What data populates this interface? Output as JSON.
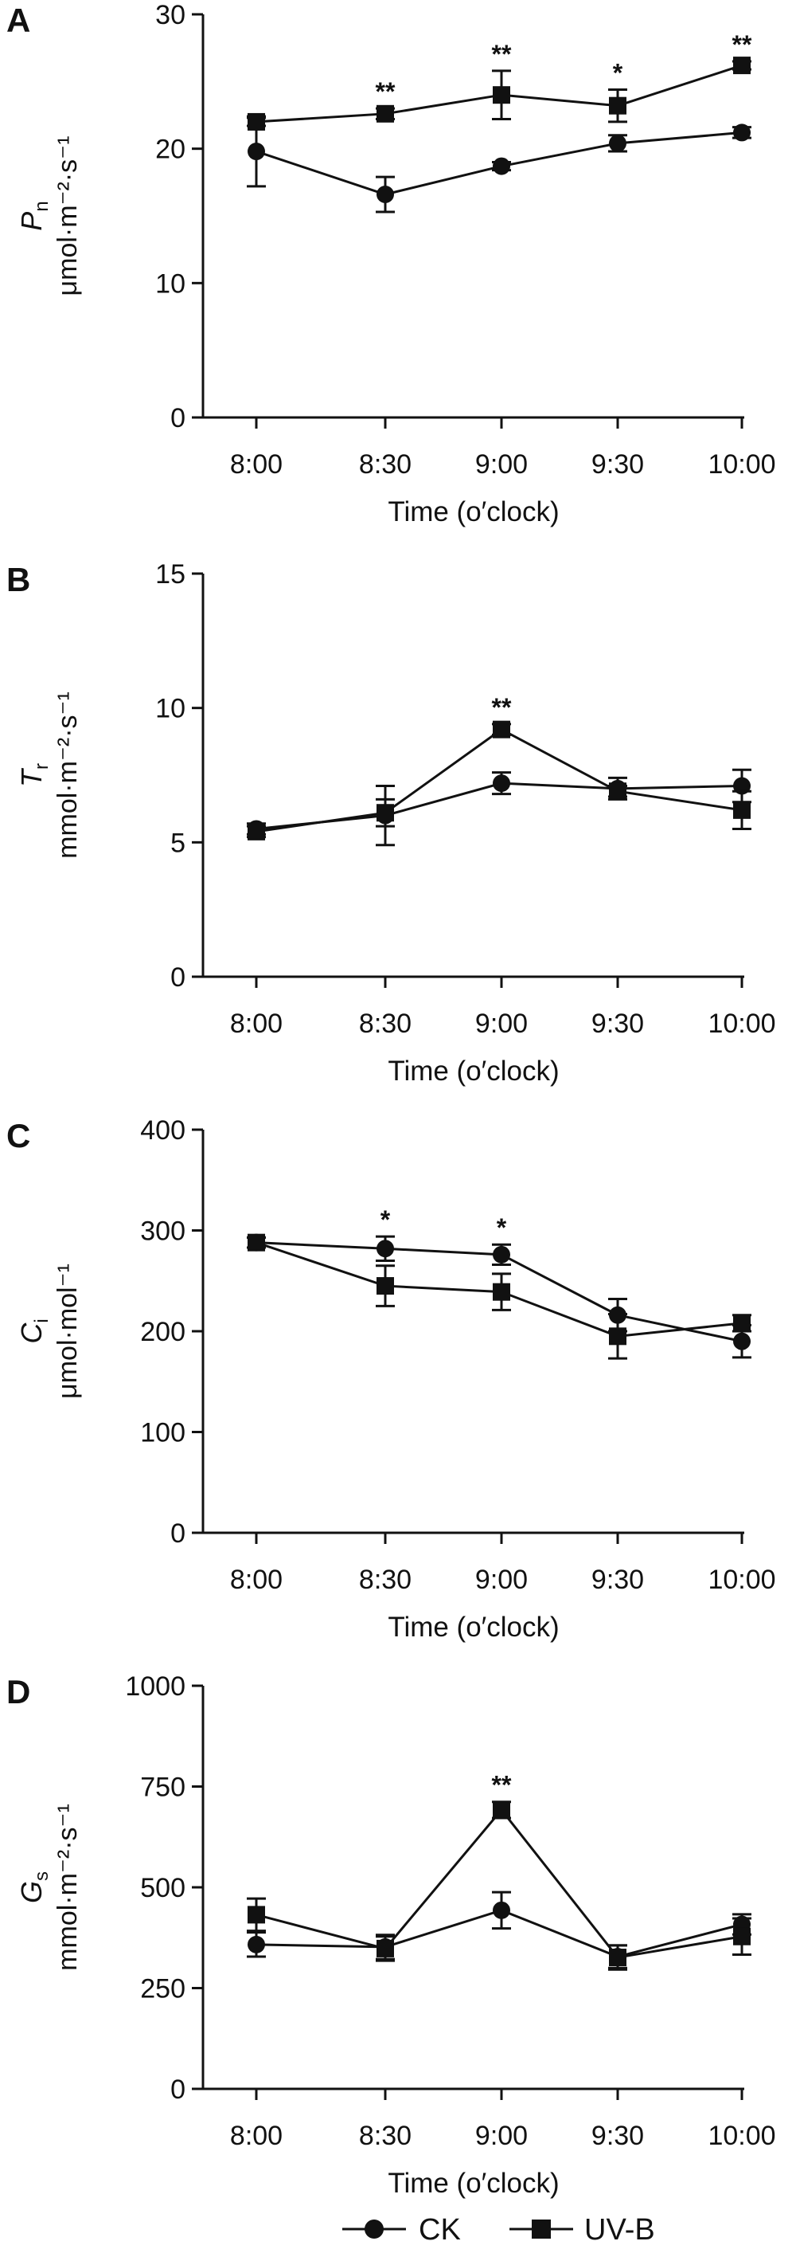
{
  "legend": {
    "ck": "CK",
    "uvb": "UV-B",
    "placement": "bottom"
  },
  "chart_data": [
    {
      "type": "line",
      "panel_label": "A",
      "ylabel_symbol": "P",
      "ylabel_subscript": "n",
      "ylabel_unit": "μmol·m⁻²·s⁻¹",
      "xlabel": "Time (o′clock)",
      "categories": [
        "8:00",
        "8:30",
        "9:00",
        "9:30",
        "10:00"
      ],
      "ylim": [
        0,
        30
      ],
      "yticks": [
        "0",
        "10",
        "20",
        "30"
      ],
      "series": [
        {
          "name": "CK",
          "marker": "circle",
          "values": [
            19.8,
            16.6,
            18.7,
            20.4,
            21.2
          ],
          "errors": [
            2.6,
            1.3,
            0.3,
            0.6,
            0.4
          ]
        },
        {
          "name": "UV-B",
          "marker": "square",
          "values": [
            22.0,
            22.6,
            24.0,
            23.2,
            26.2
          ],
          "errors": [
            0.3,
            0.4,
            1.8,
            1.2,
            0.3
          ]
        }
      ],
      "significance": [
        "",
        "**",
        "**",
        "*",
        "**"
      ]
    },
    {
      "type": "line",
      "panel_label": "B",
      "ylabel_symbol": "T",
      "ylabel_subscript": "r",
      "ylabel_unit": "mmol·m⁻²·s⁻¹",
      "xlabel": "Time (o′clock)",
      "categories": [
        "8:00",
        "8:30",
        "9:00",
        "9:30",
        "10:00"
      ],
      "ylim": [
        0,
        15
      ],
      "yticks": [
        "0",
        "5",
        "10",
        "15"
      ],
      "series": [
        {
          "name": "CK",
          "marker": "circle",
          "values": [
            5.5,
            6.0,
            7.2,
            7.0,
            7.1
          ],
          "errors": [
            0.2,
            1.1,
            0.4,
            0.4,
            0.6
          ]
        },
        {
          "name": "UV-B",
          "marker": "square",
          "values": [
            5.4,
            6.1,
            9.2,
            6.9,
            6.2
          ],
          "errors": [
            0.2,
            0.5,
            0.2,
            0.2,
            0.7
          ]
        }
      ],
      "significance": [
        "",
        "",
        "**",
        "",
        ""
      ]
    },
    {
      "type": "line",
      "panel_label": "C",
      "ylabel_symbol": "C",
      "ylabel_subscript": "i",
      "ylabel_unit": "μmol·mol⁻¹",
      "xlabel": "Time (o′clock)",
      "categories": [
        "8:00",
        "8:30",
        "9:00",
        "9:30",
        "10:00"
      ],
      "ylim": [
        0,
        400
      ],
      "yticks": [
        "0",
        "100",
        "200",
        "300",
        "400"
      ],
      "series": [
        {
          "name": "CK",
          "marker": "circle",
          "values": [
            288,
            282,
            276,
            216,
            190
          ],
          "errors": [
            5,
            12,
            10,
            16,
            16
          ]
        },
        {
          "name": "UV-B",
          "marker": "square",
          "values": [
            288,
            245,
            239,
            195,
            208
          ],
          "errors": [
            5,
            20,
            18,
            22,
            8
          ]
        }
      ],
      "significance": [
        "",
        "*",
        "*",
        "",
        ""
      ]
    },
    {
      "type": "line",
      "panel_label": "D",
      "ylabel_symbol": "G",
      "ylabel_subscript": "s",
      "ylabel_unit": "mmol·m⁻²·s⁻¹",
      "xlabel": "Time (o′clock)",
      "categories": [
        "8:00",
        "8:30",
        "9:00",
        "9:30",
        "10:00"
      ],
      "ylim": [
        0,
        1000
      ],
      "yticks": [
        "0",
        "250",
        "500",
        "750",
        "1000"
      ],
      "series": [
        {
          "name": "CK",
          "marker": "circle",
          "values": [
            358,
            352,
            443,
            328,
            408
          ],
          "errors": [
            30,
            30,
            45,
            28,
            25
          ]
        },
        {
          "name": "UV-B",
          "marker": "square",
          "values": [
            432,
            348,
            692,
            326,
            378
          ],
          "errors": [
            40,
            30,
            20,
            30,
            45
          ]
        }
      ],
      "significance": [
        "",
        "",
        "**",
        "",
        ""
      ]
    }
  ]
}
